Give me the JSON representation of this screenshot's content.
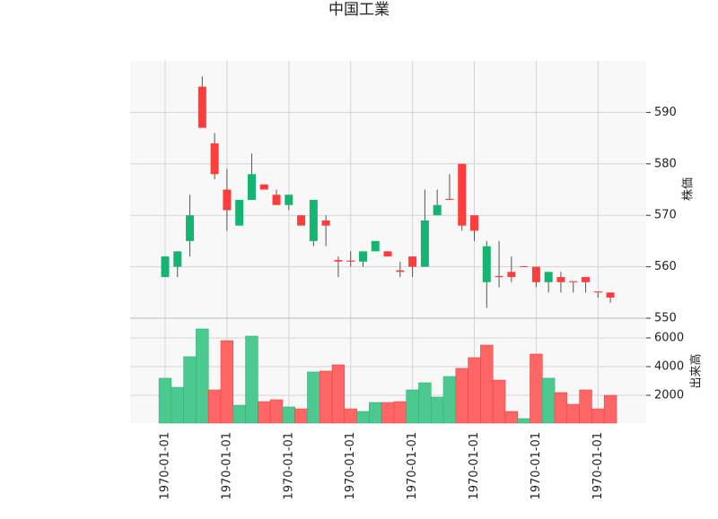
{
  "chart_data": [
    {
      "type": "candlestick",
      "title": "中国工業",
      "ylabel": "株価",
      "categories": [
        "1970-01-01",
        null,
        null,
        null,
        null,
        "1970-01-01",
        null,
        null,
        null,
        null,
        "1970-01-01",
        null,
        null,
        null,
        null,
        "1970-01-01",
        null,
        null,
        null,
        null,
        "1970-01-01",
        null,
        null,
        null,
        null,
        "1970-01-01",
        null,
        null,
        null,
        null,
        "1970-01-01",
        null,
        null,
        null,
        null,
        "1970-01-01",
        null
      ],
      "open": [
        558,
        560,
        565,
        595,
        584,
        575,
        568,
        573,
        576,
        574,
        572,
        570,
        565,
        569,
        561.3,
        561.2,
        561,
        563,
        563,
        559.3,
        562,
        560,
        570,
        573.2,
        580,
        570,
        557,
        558.2,
        559,
        560.1,
        560,
        557,
        558,
        557.2,
        558,
        555.2,
        555
      ],
      "high": [
        562,
        563,
        574,
        597,
        586,
        579,
        573,
        582,
        576,
        575,
        574,
        570,
        573,
        570,
        562,
        563,
        563,
        565,
        563,
        561,
        562,
        575,
        575,
        578,
        580,
        570,
        565,
        565,
        562,
        560,
        560,
        559,
        559,
        557,
        558,
        555,
        555
      ],
      "low": [
        558,
        558,
        562,
        587,
        577,
        567,
        568,
        573,
        575,
        572,
        571,
        568,
        564,
        564,
        558,
        560,
        560,
        563,
        562,
        558,
        558,
        560,
        570,
        573,
        567,
        565,
        552,
        556,
        557,
        560,
        556,
        555,
        555,
        555,
        555,
        554,
        553
      ],
      "close": [
        562,
        563,
        570,
        587,
        578,
        571,
        573,
        578,
        575,
        572,
        574,
        568,
        573,
        568,
        561,
        561,
        563,
        565,
        562,
        559,
        560,
        569,
        572,
        573,
        568,
        567,
        564,
        558,
        558,
        560,
        557,
        559,
        557,
        557,
        557,
        555,
        554
      ],
      "up_color": "#16b473",
      "down_color": "#ff3d3d",
      "ylim": [
        550,
        600
      ],
      "yticks": [
        550,
        560,
        570,
        580,
        590
      ],
      "grid": true
    },
    {
      "type": "bar",
      "ylabel": "出来高",
      "values": [
        3190,
        2560,
        4690,
        6625,
        2375,
        5810,
        1310,
        6125,
        1560,
        1690,
        1190,
        1060,
        3625,
        3690,
        4125,
        1060,
        875,
        1500,
        1500,
        1560,
        2375,
        2875,
        1875,
        3310,
        3875,
        4625,
        5500,
        3060,
        875,
        375,
        4875,
        3190,
        2190,
        1375,
        2375,
        1060,
        2000
      ],
      "colors": [
        "#4cc98e",
        "#4cc98e",
        "#4cc98e",
        "#4cc98e",
        "#ff6666",
        "#ff6666",
        "#4cc98e",
        "#4cc98e",
        "#ff6666",
        "#ff6666",
        "#4cc98e",
        "#ff6666",
        "#4cc98e",
        "#ff6666",
        "#ff6666",
        "#ff6666",
        "#4cc98e",
        "#4cc98e",
        "#ff6666",
        "#ff6666",
        "#4cc98e",
        "#4cc98e",
        "#4cc98e",
        "#4cc98e",
        "#ff6666",
        "#ff6666",
        "#ff6666",
        "#ff6666",
        "#ff6666",
        "#4cc98e",
        "#ff6666",
        "#4cc98e",
        "#ff6666",
        "#ff6666",
        "#ff6666",
        "#ff6666",
        "#ff6666"
      ],
      "ylim": [
        63,
        7375
      ],
      "yticks": [
        2000,
        4000,
        6000
      ],
      "grid": true
    }
  ]
}
